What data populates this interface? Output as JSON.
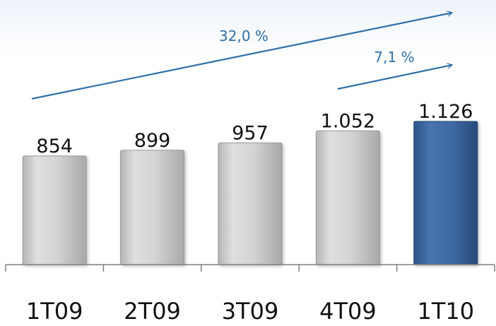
{
  "chart_data": {
    "type": "bar",
    "title": "",
    "xlabel": "",
    "ylabel": "",
    "categories": [
      "1T09",
      "2T09",
      "3T09",
      "4T09",
      "1T10"
    ],
    "values": [
      854,
      899,
      957,
      1052,
      1126
    ],
    "value_labels": [
      "854",
      "899",
      "957",
      "1.052",
      "1.126"
    ],
    "highlight_index": 4,
    "ylim": [
      0,
      1126
    ],
    "grid": false,
    "legend": "none",
    "colors": {
      "bar": "#cfcfcf",
      "bar_highlight": "#3f6aa3",
      "arrow": "#2f6fa8",
      "axis": "#7f7f7f",
      "text": "#111111"
    },
    "annotations": [
      {
        "label": "32,0 %",
        "from_category": "1T09",
        "to_category": "1T10",
        "meaning": "growth"
      },
      {
        "label": "7,1 %",
        "from_category": "4T09",
        "to_category": "1T10",
        "meaning": "growth"
      }
    ]
  }
}
